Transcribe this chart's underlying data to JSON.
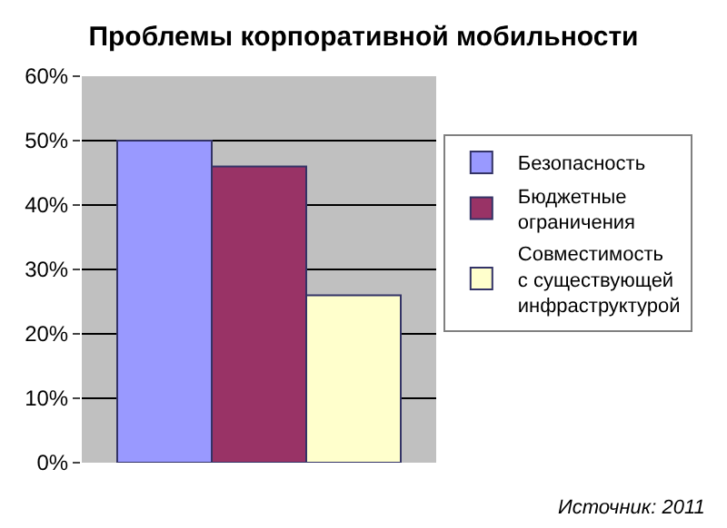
{
  "chart_data": {
    "type": "bar",
    "title": "Проблемы корпоративной мобильности",
    "categories": [
      null
    ],
    "series": [
      {
        "name": "Безопасность",
        "color": "#9999ff",
        "values": [
          50
        ]
      },
      {
        "name": "Бюджетные ограничения",
        "color": "#993366",
        "values": [
          46
        ]
      },
      {
        "name": "Совместимость с существующей инфраструктурой",
        "color": "#ffffcc",
        "values": [
          26
        ]
      }
    ],
    "ylim": [
      0,
      60
    ],
    "yticks": [
      {
        "value": 0,
        "label": "0%"
      },
      {
        "value": 10,
        "label": "10%"
      },
      {
        "value": 20,
        "label": "20%"
      },
      {
        "value": 30,
        "label": "30%"
      },
      {
        "value": 40,
        "label": "40%"
      },
      {
        "value": 50,
        "label": "50%"
      },
      {
        "value": 60,
        "label": "60%"
      }
    ],
    "grid": "y",
    "legend": "right",
    "annotations": [
      "Источник: 2011"
    ]
  }
}
